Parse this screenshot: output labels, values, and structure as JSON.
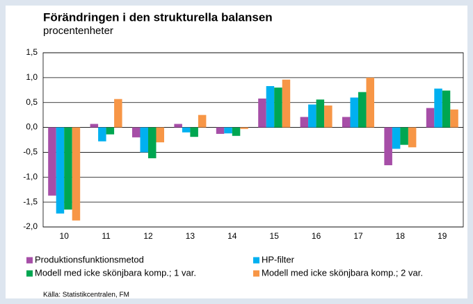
{
  "chart_data": {
    "type": "bar",
    "title": "Förändringen i den strukturella balansen",
    "subtitle": "procentenheter",
    "source": "Källa: Statistikcentralen, FM",
    "categories": [
      "10",
      "11",
      "12",
      "13",
      "14",
      "15",
      "16",
      "17",
      "18",
      "19"
    ],
    "series": [
      {
        "name": "Produktionsfunktionsmetod",
        "color": "#a64ea7",
        "values": [
          -1.37,
          0.07,
          -0.2,
          0.07,
          -0.13,
          0.58,
          0.21,
          0.21,
          -0.76,
          0.39
        ]
      },
      {
        "name": "HP-filter",
        "color": "#00b0f0",
        "values": [
          -1.73,
          -0.28,
          -0.5,
          -0.1,
          -0.12,
          0.83,
          0.46,
          0.6,
          -0.43,
          0.78
        ]
      },
      {
        "name": "Modell med icke skönjbara komp.; 1 var.",
        "color": "#00a651",
        "values": [
          -1.65,
          -0.14,
          -0.62,
          -0.19,
          -0.17,
          0.8,
          0.56,
          0.71,
          -0.35,
          0.74
        ]
      },
      {
        "name": "Modell med icke skönjbara komp.; 2 var.",
        "color": "#f79646",
        "values": [
          -1.87,
          0.57,
          -0.3,
          0.25,
          -0.03,
          0.96,
          0.44,
          1.0,
          -0.4,
          0.36
        ]
      }
    ],
    "ylim": [
      -2,
      1.5
    ],
    "yticks": [
      {
        "value": -2,
        "label": "-2,0"
      },
      {
        "value": -1.5,
        "label": "-1,5"
      },
      {
        "value": -1,
        "label": "-1,0"
      },
      {
        "value": -0.5,
        "label": "-0,5"
      },
      {
        "value": 0,
        "label": "0,0"
      },
      {
        "value": 0.5,
        "label": "0,5"
      },
      {
        "value": 1,
        "label": "1,0"
      },
      {
        "value": 1.5,
        "label": "1,5"
      }
    ],
    "grid": true
  }
}
